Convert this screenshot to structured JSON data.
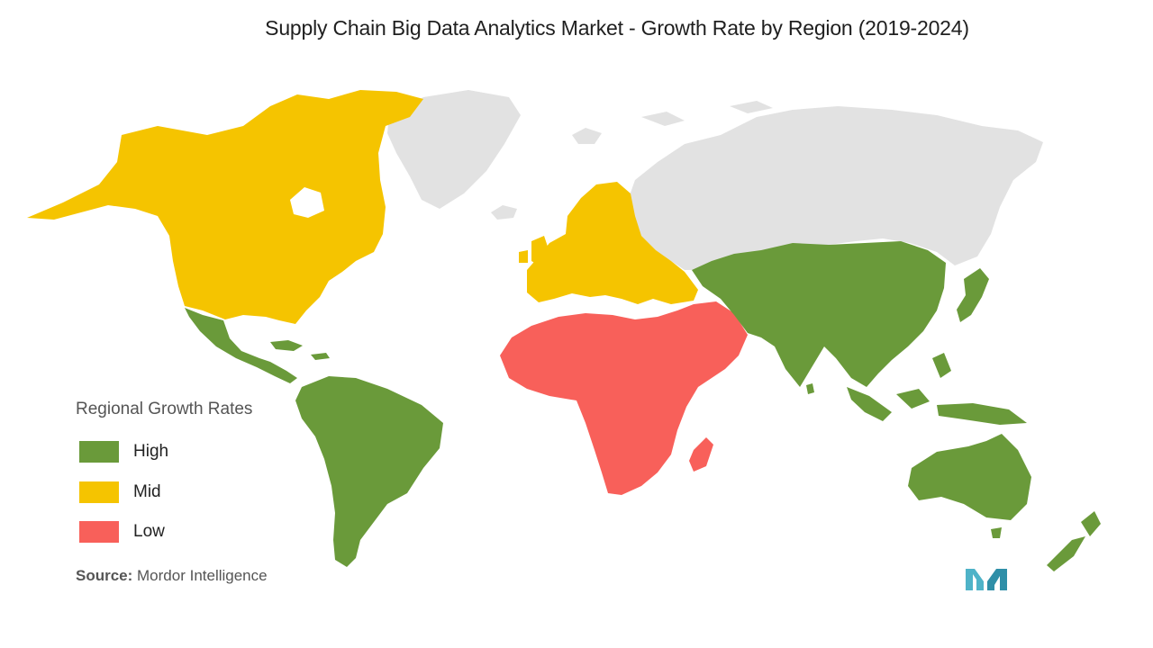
{
  "title": "Supply Chain Big Data Analytics Market  - Growth Rate by Region (2019-2024)",
  "legend": {
    "title": "Regional Growth Rates",
    "items": [
      {
        "label": "High",
        "color": "#6a9a3a"
      },
      {
        "label": "Mid",
        "color": "#f5c400"
      },
      {
        "label": "Low",
        "color": "#f8605a"
      }
    ]
  },
  "colors": {
    "no_data": "#e2e2e2",
    "logo": "#4fb3c8"
  },
  "regions": [
    {
      "name": "North America",
      "rate": "Mid"
    },
    {
      "name": "Europe",
      "rate": "Mid"
    },
    {
      "name": "Asia-Pacific",
      "rate": "High"
    },
    {
      "name": "South America",
      "rate": "High"
    },
    {
      "name": "Middle East and Africa",
      "rate": "Low"
    }
  ],
  "source": {
    "label": "Source:",
    "text": " Mordor Intelligence"
  }
}
